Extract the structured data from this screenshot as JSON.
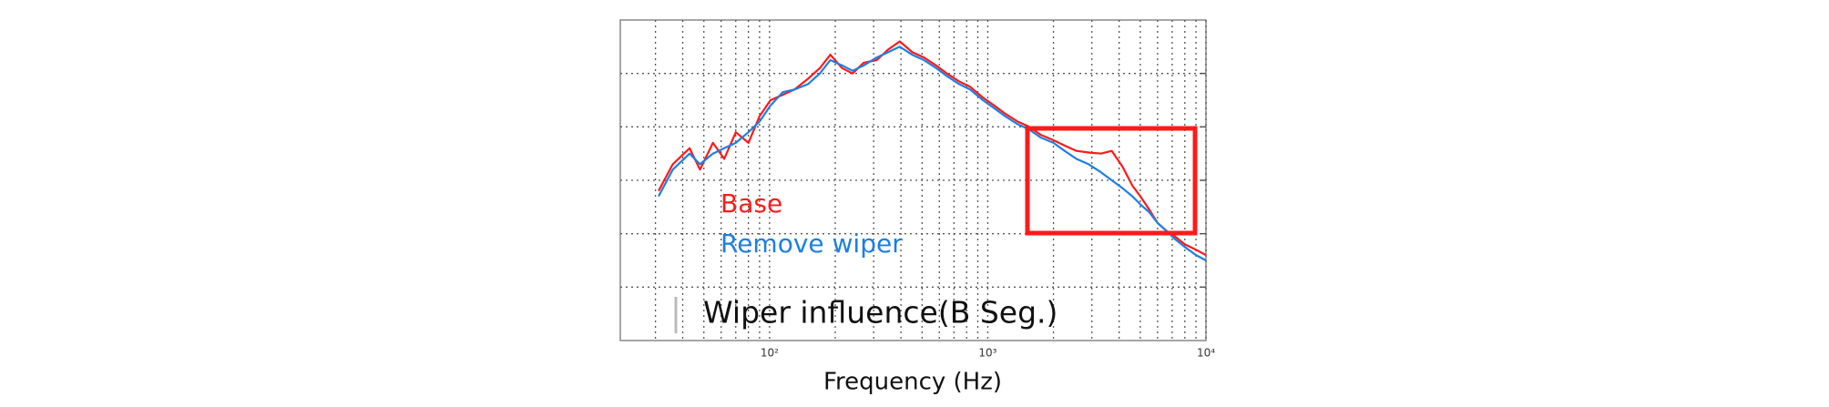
{
  "chart_data": {
    "type": "line",
    "x_label": "Frequency (Hz)",
    "annotation": "Wiper influence(B Seg.)",
    "log_x": true,
    "grid": true,
    "xlim": [
      20.7,
      10000
    ],
    "xticks": [
      {
        "value": 100,
        "label": "10²"
      },
      {
        "value": 1000,
        "label": "10³"
      },
      {
        "value": 10000,
        "label": "10⁴"
      }
    ],
    "xminorticks": [
      30,
      40,
      50,
      60,
      70,
      80,
      90,
      200,
      300,
      400,
      500,
      600,
      700,
      800,
      900,
      2000,
      3000,
      4000,
      5000,
      6000,
      7000,
      8000,
      9000
    ],
    "ylim": [
      0,
      6
    ],
    "yticks": [
      1,
      2,
      3,
      4,
      5
    ],
    "x": [
      31,
      36,
      43,
      48,
      55,
      62,
      70,
      80,
      90,
      101,
      115,
      130,
      150,
      170,
      190,
      215,
      240,
      270,
      310,
      350,
      395,
      450,
      510,
      580,
      650,
      740,
      830,
      950,
      1070,
      1200,
      1370,
      1550,
      1750,
      2000,
      2250,
      2550,
      2900,
      3300,
      3700,
      4150,
      4600,
      5000,
      5500,
      6000,
      6600,
      7200,
      8000,
      9000,
      10000
    ],
    "series": [
      {
        "name": "Base",
        "color": "#ff1a1a",
        "values": [
          2.8,
          3.3,
          3.6,
          3.2,
          3.7,
          3.4,
          3.9,
          3.7,
          4.2,
          4.5,
          4.6,
          4.7,
          4.9,
          5.1,
          5.35,
          5.1,
          5.0,
          5.2,
          5.25,
          5.45,
          5.6,
          5.4,
          5.3,
          5.15,
          5.0,
          4.85,
          4.75,
          4.55,
          4.4,
          4.25,
          4.1,
          4.0,
          3.85,
          3.75,
          3.65,
          3.55,
          3.52,
          3.5,
          3.55,
          3.25,
          2.9,
          2.7,
          2.45,
          2.2,
          2.05,
          1.95,
          1.8,
          1.7,
          1.6
        ]
      },
      {
        "name": "Remove wiper",
        "color": "#1e7fe0",
        "values": [
          2.7,
          3.2,
          3.5,
          3.3,
          3.5,
          3.6,
          3.7,
          3.9,
          4.1,
          4.4,
          4.65,
          4.7,
          4.8,
          5.0,
          5.25,
          5.15,
          5.05,
          5.15,
          5.3,
          5.4,
          5.5,
          5.35,
          5.25,
          5.1,
          4.95,
          4.8,
          4.7,
          4.5,
          4.35,
          4.2,
          4.05,
          3.95,
          3.8,
          3.7,
          3.55,
          3.4,
          3.3,
          3.15,
          3.0,
          2.85,
          2.7,
          2.55,
          2.4,
          2.2,
          2.05,
          1.9,
          1.75,
          1.6,
          1.5
        ]
      }
    ]
  }
}
